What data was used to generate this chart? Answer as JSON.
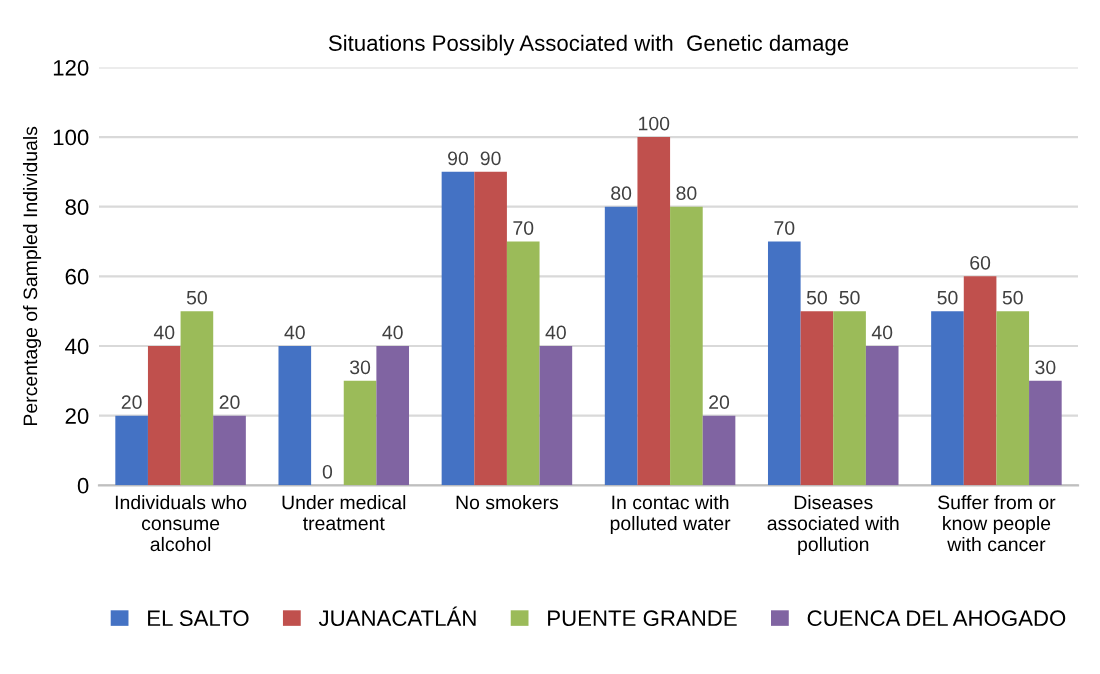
{
  "chart_data": {
    "type": "bar",
    "title": "Situations Possibly Associated with  Genetic damage",
    "ylabel": "Percentage of Sampled Individuals",
    "categories": [
      "Individuals who\nconsume\nalcohol",
      "Under medical\ntreatment",
      "No smokers",
      "In contac with\npolluted water",
      "Diseases\nassociated with\npollution",
      "Suffer from or\nknow people\nwith cancer"
    ],
    "series": [
      {
        "name": "EL SALTO",
        "color": "#4472c4",
        "values": [
          20,
          40,
          90,
          80,
          70,
          50
        ]
      },
      {
        "name": "JUANACATLÁN",
        "color": "#c0504d",
        "values": [
          40,
          0,
          90,
          100,
          50,
          60
        ]
      },
      {
        "name": "PUENTE GRANDE",
        "color": "#9bbb59",
        "values": [
          50,
          30,
          70,
          80,
          50,
          50
        ]
      },
      {
        "name": "CUENCA DEL AHOGADO",
        "color": "#8064a2",
        "values": [
          20,
          40,
          40,
          20,
          40,
          30
        ]
      }
    ],
    "ylim": [
      0,
      120
    ],
    "yticks": [
      0,
      20,
      40,
      60,
      80,
      100,
      120
    ],
    "grid": "y",
    "legend": "bottom",
    "data_labels": true
  }
}
